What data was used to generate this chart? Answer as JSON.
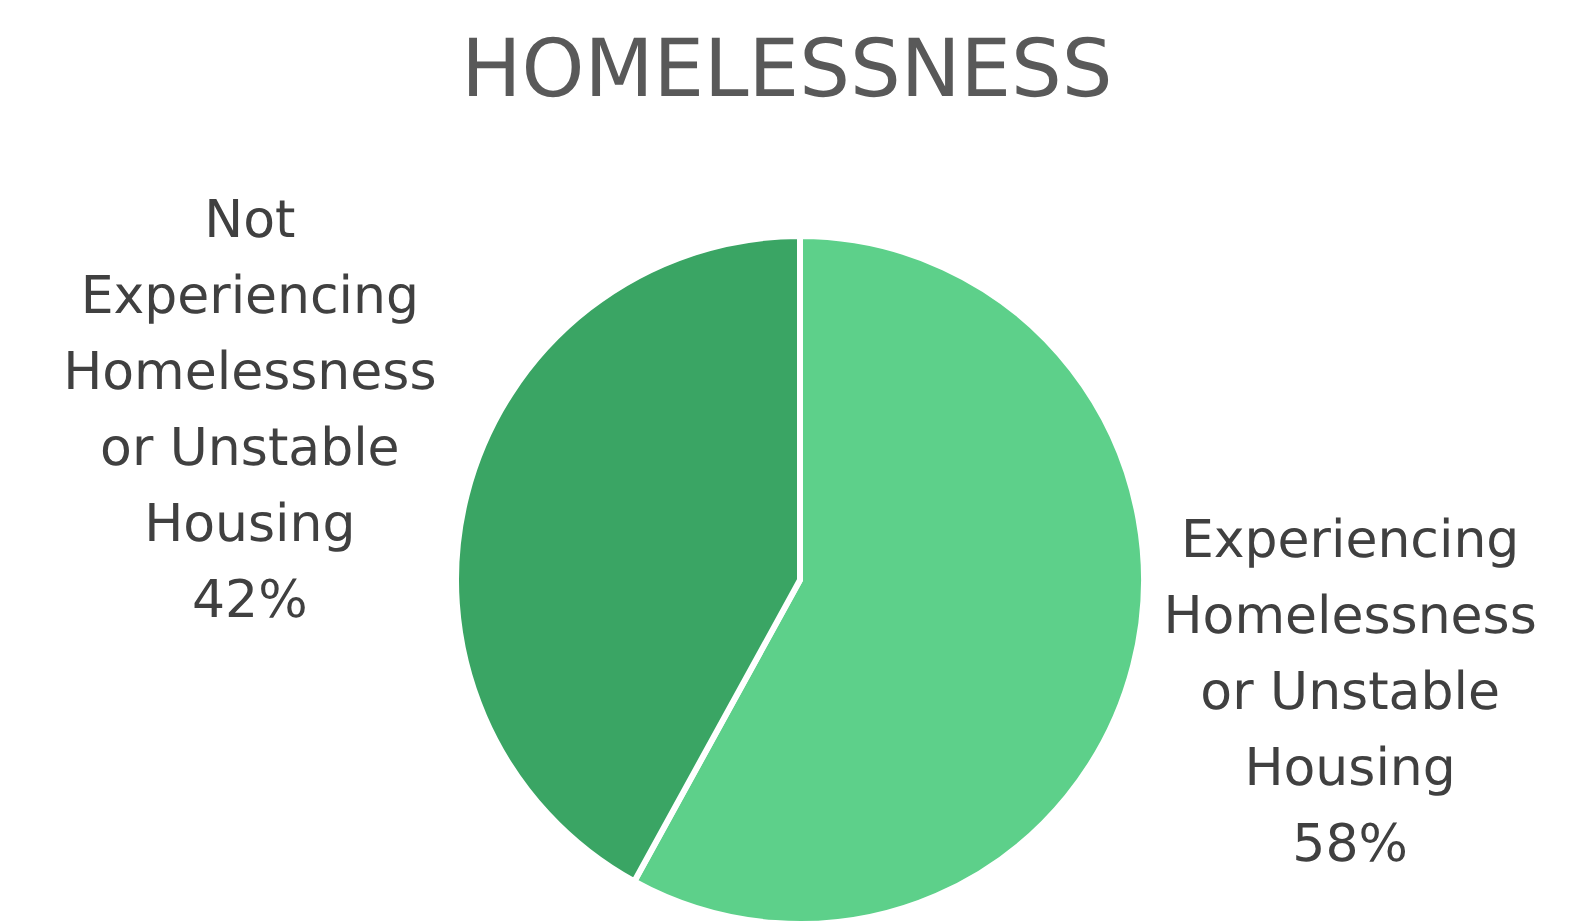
{
  "chart_data": {
    "type": "pie",
    "title": "HOMELESSNESS",
    "categories": [
      "Experiencing Homelessness or Unstable Housing",
      "Not Experiencing Homelessness or Unstable Housing"
    ],
    "values": [
      58,
      42
    ],
    "value_labels": [
      "58%",
      "42%"
    ],
    "colors": [
      "#5dd08a",
      "#3aa564"
    ]
  }
}
